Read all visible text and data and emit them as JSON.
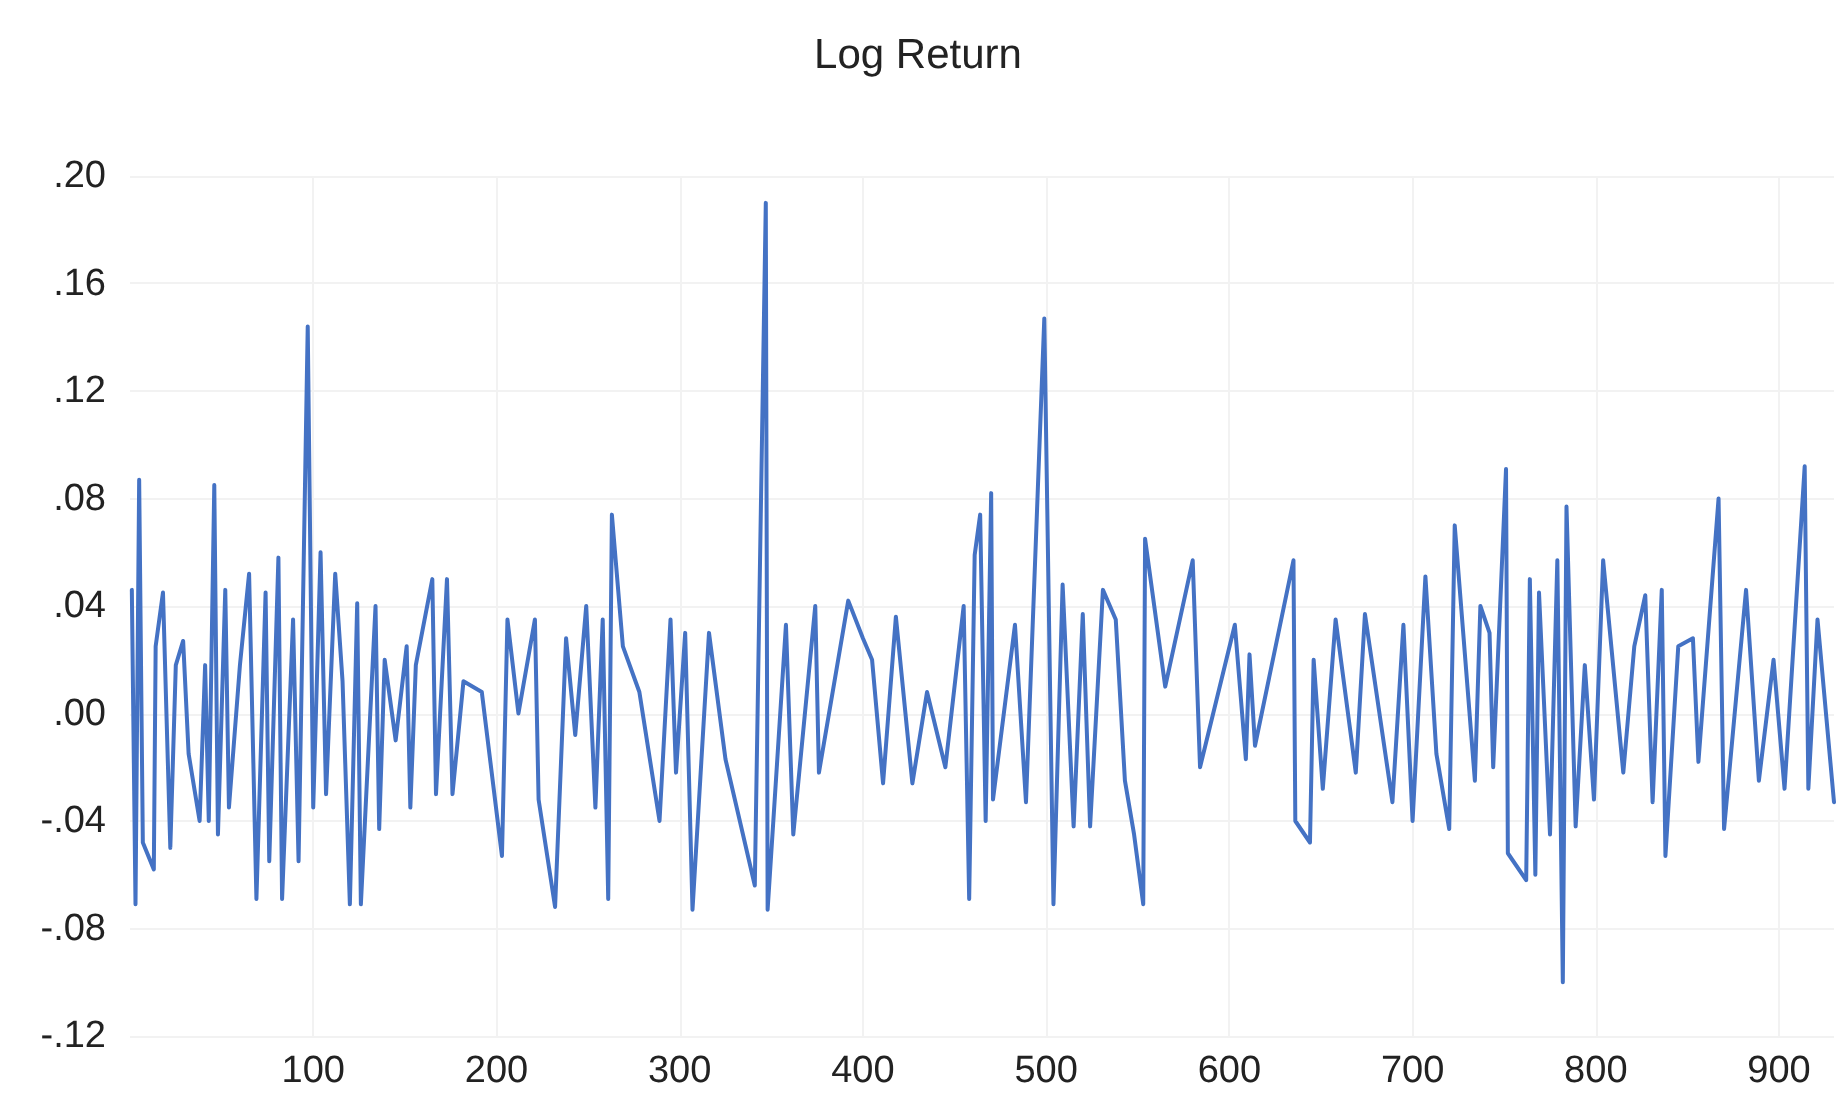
{
  "chart_data": {
    "type": "line",
    "title": "Log Return",
    "xlim": [
      0,
      930
    ],
    "xticks": [
      100,
      200,
      300,
      400,
      500,
      600,
      700,
      800,
      900
    ],
    "ylim": [
      -0.12,
      0.2
    ],
    "yticks": [
      {
        "value": -0.12,
        "label": "-.12"
      },
      {
        "value": -0.08,
        "label": "-.08"
      },
      {
        "value": -0.04,
        "label": "-.04"
      },
      {
        "value": 0,
        "label": ".00"
      },
      {
        "value": 0.04,
        "label": ".04"
      },
      {
        "value": 0.08,
        "label": ".08"
      },
      {
        "value": 0.12,
        "label": ".12"
      },
      {
        "value": 0.16,
        "label": ".16"
      },
      {
        "value": 0.2,
        "label": ".20"
      }
    ],
    "grid": true,
    "marker": "none",
    "line_style": "solid",
    "x": [
      1,
      3,
      5,
      7,
      13,
      14,
      18,
      22,
      25,
      29,
      32,
      38,
      41,
      43,
      46,
      48,
      52,
      54,
      60,
      65,
      69,
      74,
      76,
      81,
      83,
      89,
      92,
      97,
      100,
      104,
      107,
      112,
      116,
      120,
      124,
      126,
      134,
      136,
      139,
      145,
      151,
      153,
      156,
      165,
      167,
      173,
      176,
      182,
      192,
      203,
      206,
      212,
      221,
      223,
      232,
      238,
      243,
      249,
      254,
      258,
      261,
      263,
      269,
      278,
      289,
      295,
      298,
      303,
      307,
      316,
      325,
      341,
      347,
      348,
      358,
      362,
      374,
      376,
      392,
      400,
      405,
      411,
      418,
      427,
      435,
      445,
      455,
      458,
      461,
      464,
      467,
      470,
      471,
      483,
      489,
      499,
      504,
      509,
      515,
      520,
      524,
      531,
      538,
      543,
      548,
      553,
      554,
      565,
      580,
      584,
      603,
      609,
      611,
      614,
      635,
      636,
      644,
      646,
      651,
      658,
      669,
      674,
      689,
      695,
      700,
      707,
      713,
      720,
      723,
      734,
      737,
      742,
      744,
      751,
      752,
      762,
      764,
      767,
      769,
      775,
      779,
      782,
      784,
      789,
      794,
      799,
      804,
      815,
      821,
      827,
      831,
      836,
      838,
      845,
      853,
      856,
      867,
      870,
      882,
      889,
      897,
      903,
      914,
      916,
      921,
      930
    ],
    "series": [
      {
        "color": "#4472c4",
        "values": [
          0.046,
          -0.071,
          0.087,
          -0.048,
          -0.058,
          0.025,
          0.045,
          -0.05,
          0.018,
          0.027,
          -0.015,
          -0.04,
          0.018,
          -0.04,
          0.085,
          -0.045,
          0.046,
          -0.035,
          0.018,
          0.052,
          -0.069,
          0.045,
          -0.055,
          0.058,
          -0.069,
          0.035,
          -0.055,
          0.144,
          -0.035,
          0.06,
          -0.03,
          0.052,
          0.012,
          -0.071,
          0.041,
          -0.071,
          0.04,
          -0.043,
          0.02,
          -0.01,
          0.025,
          -0.035,
          0.018,
          0.05,
          -0.03,
          0.05,
          -0.03,
          0.012,
          0.008,
          -0.053,
          0.035,
          0,
          0.035,
          -0.032,
          -0.072,
          0.028,
          -0.008,
          0.04,
          -0.035,
          0.035,
          -0.069,
          0.074,
          0.025,
          0.008,
          -0.04,
          0.035,
          -0.022,
          0.03,
          -0.073,
          0.03,
          -0.017,
          -0.064,
          0.19,
          -0.073,
          0.033,
          -0.045,
          0.04,
          -0.022,
          0.042,
          0.028,
          0.02,
          -0.026,
          0.036,
          -0.026,
          0.008,
          -0.02,
          0.04,
          -0.069,
          0.059,
          0.074,
          -0.04,
          0.082,
          -0.032,
          0.033,
          -0.033,
          0.147,
          -0.071,
          0.048,
          -0.042,
          0.037,
          -0.042,
          0.046,
          0.035,
          -0.025,
          -0.045,
          -0.071,
          0.065,
          0.01,
          0.057,
          -0.02,
          0.033,
          -0.017,
          0.022,
          -0.012,
          0.057,
          -0.04,
          -0.048,
          0.02,
          -0.028,
          0.035,
          -0.022,
          0.037,
          -0.033,
          0.033,
          -0.04,
          0.051,
          -0.015,
          -0.043,
          0.07,
          -0.025,
          0.04,
          0.03,
          -0.02,
          0.091,
          -0.052,
          -0.062,
          0.05,
          -0.06,
          0.045,
          -0.045,
          0.057,
          -0.1,
          0.077,
          -0.042,
          0.018,
          -0.032,
          0.057,
          -0.022,
          0.025,
          0.044,
          -0.033,
          0.046,
          -0.053,
          0.025,
          0.028,
          -0.018,
          0.08,
          -0.043,
          0.046,
          -0.025,
          0.02,
          -0.028,
          0.092,
          -0.028,
          0.035,
          -0.033
        ]
      }
    ]
  }
}
